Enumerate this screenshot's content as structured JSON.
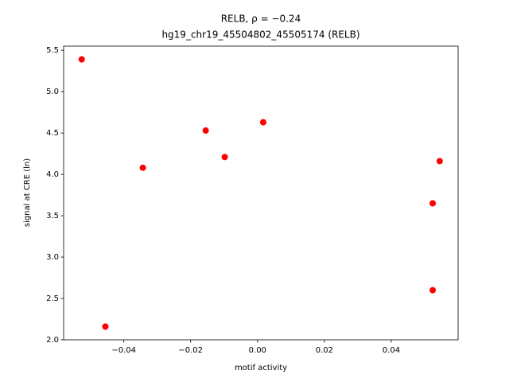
{
  "chart_data": {
    "type": "scatter",
    "title": "RELB, ρ = −0.24",
    "subtitle": "hg19_chr19_45504802_45505174 (RELB)",
    "x_label": "motif activity",
    "y_label": "signal at CRE (ln)",
    "color": "#ff0000",
    "x": [
      -0.0526,
      -0.0455,
      -0.0343,
      -0.0155,
      -0.0098,
      0.0017,
      0.0545,
      0.0524,
      0.0524
    ],
    "values": [
      5.39,
      2.16,
      4.08,
      4.53,
      4.21,
      4.63,
      4.16,
      3.65,
      2.6
    ],
    "xlim": [
      -0.058,
      0.06
    ],
    "ylim": [
      2.0,
      5.55
    ],
    "xticks": [
      {
        "value": -0.04,
        "label": "−0.04"
      },
      {
        "value": -0.02,
        "label": "−0.02"
      },
      {
        "value": 0,
        "label": "0.00"
      },
      {
        "value": 0.02,
        "label": "0.02"
      },
      {
        "value": 0.04,
        "label": "0.04"
      }
    ],
    "yticks": [
      {
        "value": 2,
        "label": "2.0"
      },
      2.5,
      {
        "value": 3,
        "label": "3.0"
      },
      3.5,
      {
        "value": 4,
        "label": "4.0"
      },
      4.5,
      {
        "value": 5,
        "label": "5.0"
      },
      5.5
    ],
    "grid": false
  }
}
